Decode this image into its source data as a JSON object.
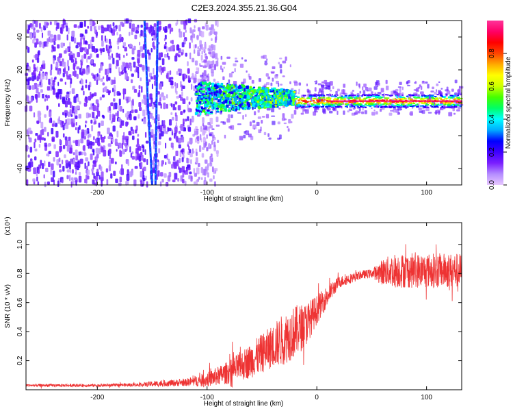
{
  "title": "C2E3.2024.355.21.36.G04",
  "colors": {
    "snr_line": "#ee3333",
    "background": "#ffffff",
    "axes": "#000000",
    "colorbar_stops": [
      "#e8c8ff",
      "#b48cff",
      "#7a1fff",
      "#3f00ff",
      "#0000ff",
      "#00aaff",
      "#00ffff",
      "#00ff66",
      "#44ff00",
      "#ccff00",
      "#ffff00",
      "#ffaa00",
      "#ff4400",
      "#ff0000",
      "#ff0066",
      "#ff3399"
    ]
  },
  "chart_data": [
    {
      "id": "spectrogram",
      "type": "heatmap",
      "title": "C2E3.2024.355.21.36.G04",
      "xlabel": "Height of straight line (km)",
      "ylabel": "Frequency (Hz)",
      "xlim": [
        -265,
        132
      ],
      "ylim": [
        -50,
        50
      ],
      "xticks": [
        -200,
        -100,
        0,
        100
      ],
      "xtick_labels": [
        "-200",
        "-100",
        "0",
        "100"
      ],
      "yticks": [
        -40,
        -20,
        0,
        20,
        40
      ],
      "ytick_labels": [
        "-40",
        "-20",
        "0",
        "20",
        "40"
      ],
      "colorbar": {
        "label": "Normalized spectral amplitude",
        "range": [
          0,
          1
        ],
        "ticks": [
          0.0,
          0.2,
          0.4,
          0.6,
          0.8
        ],
        "tick_labels": [
          "0.0",
          "0.2",
          "0.4",
          "0.6",
          "0.8"
        ]
      },
      "regions": [
        {
          "name": "noise",
          "x_range": [
            -265,
            -100
          ],
          "freq_range": [
            -50,
            50
          ],
          "amplitude": 0.1
        },
        {
          "name": "signal-onset",
          "x_range": [
            -110,
            -20
          ],
          "center_freq": 3,
          "freq_spread": 10,
          "amplitude": 0.35
        },
        {
          "name": "locked-signal",
          "x_range": [
            -20,
            132
          ],
          "center_freq": 1,
          "freq_spread": 2,
          "amplitude": 0.95
        }
      ],
      "tracks": [
        {
          "name": "interference-track-1",
          "points": [
            [
              -157,
              50
            ],
            [
              -154,
              0
            ],
            [
              -150,
              -50
            ]
          ]
        },
        {
          "name": "interference-track-2",
          "points": [
            [
              -145,
              50
            ],
            [
              -146,
              0
            ],
            [
              -147,
              -50
            ]
          ]
        }
      ]
    },
    {
      "id": "snr",
      "type": "line",
      "xlabel": "Height of straight line (km)",
      "ylabel": "SNR (10 * v/v)",
      "y_multiplier": "(x10⁴)",
      "xlim": [
        -265,
        132
      ],
      "ylim": [
        0,
        1.15
      ],
      "xticks": [
        -200,
        -100,
        0,
        100
      ],
      "xtick_labels": [
        "-200",
        "-100",
        "0",
        "100"
      ],
      "yticks": [
        0.2,
        0.4,
        0.6,
        0.8,
        1.0
      ],
      "ytick_labels": [
        "0.2",
        "0.4",
        "0.6",
        "0.8",
        "1.0"
      ],
      "series": [
        {
          "envelope_x": [
            -265,
            -200,
            -160,
            -150,
            -120,
            -100,
            -80,
            -60,
            -40,
            -30,
            -20,
            -10,
            0,
            10,
            20,
            40,
            50,
            60,
            70,
            80,
            100,
            120,
            132
          ],
          "envelope_mean": [
            0.03,
            0.03,
            0.035,
            0.04,
            0.05,
            0.07,
            0.12,
            0.2,
            0.3,
            0.35,
            0.4,
            0.45,
            0.55,
            0.65,
            0.74,
            0.79,
            0.8,
            0.81,
            0.82,
            0.82,
            0.82,
            0.82,
            0.82
          ],
          "envelope_spread": [
            0.01,
            0.01,
            0.012,
            0.02,
            0.025,
            0.05,
            0.08,
            0.12,
            0.15,
            0.18,
            0.18,
            0.15,
            0.1,
            0.07,
            0.04,
            0.03,
            0.03,
            0.09,
            0.12,
            0.12,
            0.12,
            0.12,
            0.12
          ]
        }
      ]
    }
  ]
}
